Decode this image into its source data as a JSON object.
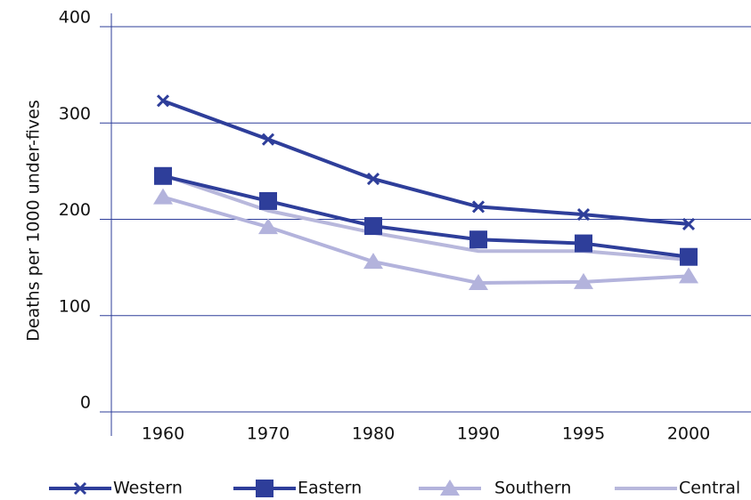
{
  "chart_data": {
    "type": "line",
    "y_label": "Deaths per 1000 under-fives",
    "categories": [
      "1960",
      "1970",
      "1980",
      "1990",
      "1995",
      "2000"
    ],
    "ylim": [
      0,
      400
    ],
    "yticks": [
      0,
      100,
      200,
      300,
      400
    ],
    "grid": true,
    "series": [
      {
        "name": "Western",
        "color": "#2e3e9a",
        "marker": "cross",
        "values": [
          323,
          283,
          242,
          213,
          205,
          195
        ]
      },
      {
        "name": "Eastern",
        "color": "#2e3e9a",
        "marker": "square",
        "values": [
          245,
          219,
          193,
          179,
          175,
          161
        ]
      },
      {
        "name": "Southern",
        "color": "#b3b3dc",
        "marker": "triangle",
        "values": [
          223,
          192,
          156,
          134,
          135,
          141
        ]
      },
      {
        "name": "Central",
        "color": "#b8b8dc",
        "marker": "none",
        "values": [
          246,
          209,
          186,
          167,
          167,
          158
        ]
      }
    ]
  }
}
